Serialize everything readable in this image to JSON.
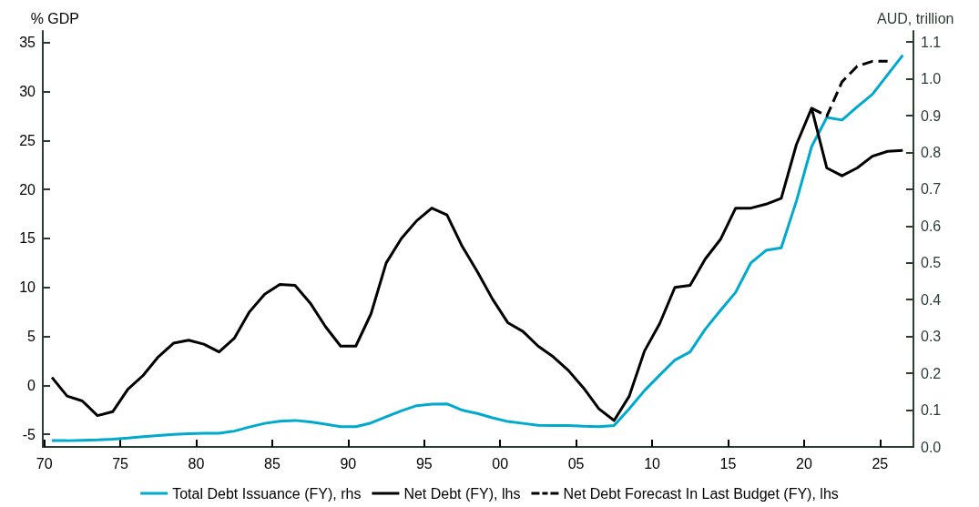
{
  "chart_data": {
    "type": "line",
    "ylabel": "% GDP",
    "y2label": "AUD, trillion",
    "x": [
      1970.5,
      1971.5,
      1972.5,
      1973.5,
      1974.5,
      1975.5,
      1976.5,
      1977.5,
      1978.5,
      1979.5,
      1980.5,
      1981.5,
      1982.5,
      1983.5,
      1984.5,
      1985.5,
      1986.5,
      1987.5,
      1988.5,
      1989.5,
      1990.5,
      1991.5,
      1992.5,
      1993.5,
      1994.5,
      1995.5,
      1996.5,
      1997.5,
      1998.5,
      1999.5,
      2000.5,
      2001.5,
      2002.5,
      2003.5,
      2004.5,
      2005.5,
      2006.5,
      2007.5,
      2008.5,
      2009.5,
      2010.5,
      2011.5,
      2012.5,
      2013.5,
      2014.5,
      2015.5,
      2016.5,
      2017.5,
      2018.5,
      2019.5,
      2020.5,
      2021.5,
      2022.5,
      2023.5,
      2024.5,
      2025.5,
      2026.5
    ],
    "series": [
      {
        "name": "Total Debt Issuance (FY), rhs",
        "color": "#00a9ce",
        "axis": "y2",
        "line_style": "solid",
        "values": [
          0.017,
          0.017,
          0.018,
          0.019,
          0.021,
          0.024,
          0.028,
          0.031,
          0.034,
          0.036,
          0.037,
          0.037,
          0.043,
          0.054,
          0.064,
          0.07,
          0.072,
          0.068,
          0.062,
          0.055,
          0.055,
          0.065,
          0.082,
          0.098,
          0.112,
          0.116,
          0.117,
          0.1,
          0.091,
          0.079,
          0.069,
          0.064,
          0.059,
          0.058,
          0.058,
          0.056,
          0.055,
          0.058,
          0.104,
          0.153,
          0.195,
          0.236,
          0.258,
          0.32,
          0.371,
          0.42,
          0.5,
          0.534,
          0.541,
          0.668,
          0.816,
          0.895,
          0.888,
          0.924,
          0.958,
          1.011,
          1.064
        ]
      },
      {
        "name": "Net Debt (FY), lhs",
        "color": "#000000",
        "line_style": "solid",
        "values": [
          0.8,
          -1.1,
          -1.6,
          -3.1,
          -2.7,
          -0.4,
          1.0,
          2.9,
          4.3,
          4.6,
          4.2,
          3.4,
          4.8,
          7.5,
          9.3,
          10.3,
          10.2,
          8.4,
          6.0,
          4.0,
          4.0,
          7.3,
          12.5,
          15.0,
          16.8,
          18.1,
          17.4,
          14.2,
          11.6,
          8.8,
          6.4,
          5.5,
          4.0,
          2.9,
          1.5,
          -0.3,
          -2.4,
          -3.6,
          -1.1,
          3.5,
          6.3,
          10.0,
          10.2,
          12.9,
          14.9,
          18.1,
          18.1,
          18.5,
          19.1,
          24.6,
          28.3,
          22.2,
          21.4,
          22.2,
          23.4,
          23.9,
          24.0
        ]
      },
      {
        "name": "Net Debt Forecast In Last Budget (FY), lhs",
        "color": "#000000",
        "line_style": "dashed",
        "x": [
          2020.5,
          2021.5,
          2022.5,
          2023.5,
          2024.5,
          2025.5
        ],
        "values": [
          28.3,
          27.5,
          31.0,
          32.6,
          33.1,
          33.1
        ]
      }
    ],
    "xlim": [
      1969.9,
      2027.2
    ],
    "xticks": [
      {
        "value": 1970,
        "label": "70"
      },
      {
        "value": 1975,
        "label": "75"
      },
      {
        "value": 1980,
        "label": "80"
      },
      {
        "value": 1985,
        "label": "85"
      },
      {
        "value": 1990,
        "label": "90"
      },
      {
        "value": 1995,
        "label": "95"
      },
      {
        "value": 2000,
        "label": "00"
      },
      {
        "value": 2005,
        "label": "05"
      },
      {
        "value": 2010,
        "label": "10"
      },
      {
        "value": 2015,
        "label": "15"
      },
      {
        "value": 2020,
        "label": "20"
      },
      {
        "value": 2025,
        "label": "25"
      }
    ],
    "ylim": [
      -6.3,
      36.2
    ],
    "yticks": [
      -5,
      0,
      5,
      10,
      15,
      20,
      25,
      30,
      35
    ],
    "y2lim": [
      0,
      1.13
    ],
    "y2ticks": [
      {
        "value": 0,
        "label": "0.0"
      },
      {
        "value": 0.1,
        "label": "0.1"
      },
      {
        "value": 0.2,
        "label": "0.2"
      },
      {
        "value": 0.3,
        "label": "0.3"
      },
      {
        "value": 0.4,
        "label": "0.4"
      },
      {
        "value": 0.5,
        "label": "0.5"
      },
      {
        "value": 0.6,
        "label": "0.6"
      },
      {
        "value": 0.7,
        "label": "0.7"
      },
      {
        "value": 0.8,
        "label": "0.8"
      },
      {
        "value": 0.9,
        "label": "0.9"
      },
      {
        "value": 1.0,
        "label": "1.0"
      },
      {
        "value": 1.1,
        "label": "1.1"
      }
    ],
    "grid": false,
    "legend": "bottom",
    "marker": "none"
  }
}
